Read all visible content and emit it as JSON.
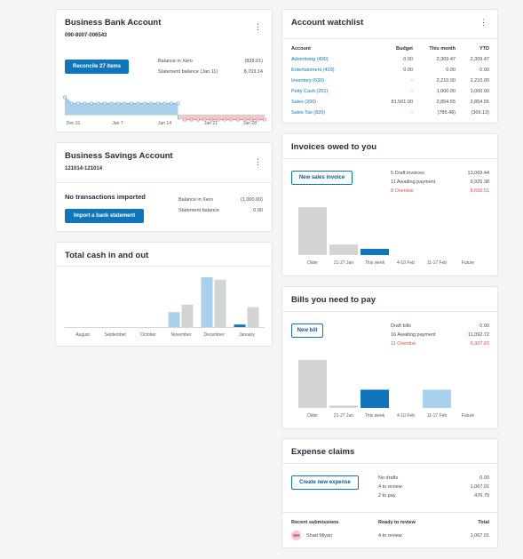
{
  "bank_account": {
    "title": "Business Bank Account",
    "number": "090-8007-006543",
    "reconcile_button": "Reconcile 27 items",
    "balance_xero_label": "Balance in Xero",
    "balance_xero_value": "(839.01)",
    "statement_label": "Statement balance (Jan 11)",
    "statement_value": "8,703.14",
    "axis": [
      "Dec 31",
      "Jan 7",
      "Jan 14",
      "Jan 21",
      "Jan 28"
    ],
    "chart_data": {
      "type": "area",
      "series": [
        {
          "values": [
            0.7,
            0.45,
            0.45,
            0.45,
            0.45,
            0.45,
            0.45,
            0.45,
            0.45,
            0.45,
            0.45,
            0.45,
            0.45,
            0.45,
            0.45,
            0.45,
            0.45,
            0.45,
            -0.2,
            -0.2,
            -0.2,
            -0.2,
            -0.2,
            -0.2,
            -0.2,
            -0.2,
            -0.2,
            -0.2,
            -0.2,
            -0.2,
            -0.2
          ]
        }
      ]
    }
  },
  "savings_account": {
    "title": "Business Savings Account",
    "number": "121014-121014",
    "no_txn": "No transactions imported",
    "import_button": "Import a bank statement",
    "balance_xero_label": "Balance in Xero",
    "balance_xero_value": "(1,000.00)",
    "statement_label": "Statement balance",
    "statement_value": "0.00"
  },
  "cash": {
    "title": "Total cash in and out",
    "chart_data": {
      "type": "bar",
      "categories": [
        "August",
        "September",
        "October",
        "November",
        "December",
        "January"
      ],
      "series": [
        {
          "values": [
            0,
            0,
            0,
            0.3,
            1.0,
            0.05
          ]
        },
        {
          "values": [
            0,
            0,
            0,
            0.45,
            0.95,
            0.4
          ]
        }
      ]
    }
  },
  "watchlist": {
    "title": "Account watchlist",
    "headers": [
      "Account",
      "Budget",
      "This month",
      "YTD"
    ],
    "rows": [
      {
        "account": "Advertising (400)",
        "budget": "0.00",
        "month": "2,309.47",
        "ytd": "2,309.47"
      },
      {
        "account": "Entertainment (420)",
        "budget": "0.00",
        "month": "0.00",
        "ytd": "0.00"
      },
      {
        "account": "Inventory (630)",
        "budget": "-",
        "month": "2,210.00",
        "ytd": "2,210.00"
      },
      {
        "account": "Petty Cash (201)",
        "budget": "-",
        "month": "1,000.00",
        "ytd": "1,000.00"
      },
      {
        "account": "Sales (200)",
        "budget": "81,501.00",
        "month": "2,854.55",
        "ytd": "2,854.55"
      },
      {
        "account": "Sales Tax (820)",
        "budget": "-",
        "month": "(785.48)",
        "ytd": "(366.13)"
      }
    ]
  },
  "invoices": {
    "title": "Invoices owed to you",
    "button": "New sales invoice",
    "draft_label": "5 Draft invoices",
    "draft_value": "13,069.44",
    "awaiting_label": "11 Awaiting payment",
    "awaiting_value": "9,925.38",
    "overdue_label": "8 Overdue",
    "overdue_value": "8,650.51",
    "chart_data": {
      "type": "bar",
      "categories": [
        "Older",
        "21-27 Jan",
        "This week",
        "4-10 Feb",
        "11-17 Feb",
        "Future"
      ],
      "values": [
        1.0,
        0.22,
        0.13,
        0,
        0,
        0
      ]
    }
  },
  "bills": {
    "title": "Bills you need to pay",
    "button": "New bill",
    "draft_label": "Draft bills",
    "draft_value": "0.00",
    "awaiting_label": "16 Awaiting payment",
    "awaiting_value": "11,092.72",
    "overdue_label": "11 Overdue",
    "overdue_value": "5,307.83",
    "chart_data": {
      "type": "bar",
      "categories": [
        "Older",
        "21-27 Jan",
        "This week",
        "4-10 Feb",
        "11-17 Feb",
        "Future"
      ],
      "values": [
        1.0,
        0.05,
        0.38,
        0,
        0.38,
        0
      ]
    }
  },
  "expenses": {
    "title": "Expense claims",
    "button": "Create new expense",
    "no_drafts_label": "No drafts",
    "no_drafts_value": "0.00",
    "review_label": "4 to review",
    "review_value": "1,067.01",
    "pay_label": "2 to pay",
    "pay_value": "476.79",
    "recent_header": "Recent submissions",
    "ready_header": "Ready to review",
    "total_header": "Total",
    "avatar": "SM",
    "submitter": "Shad Miyan",
    "submitter_review": "4 to review",
    "submitter_total": "1,067.01"
  },
  "colors": {
    "blue": "#0f75bc",
    "light_blue": "#a9d1ec",
    "grey": "#d3d4d6",
    "red": "#d9534f",
    "pink": "#f6c8cc"
  }
}
